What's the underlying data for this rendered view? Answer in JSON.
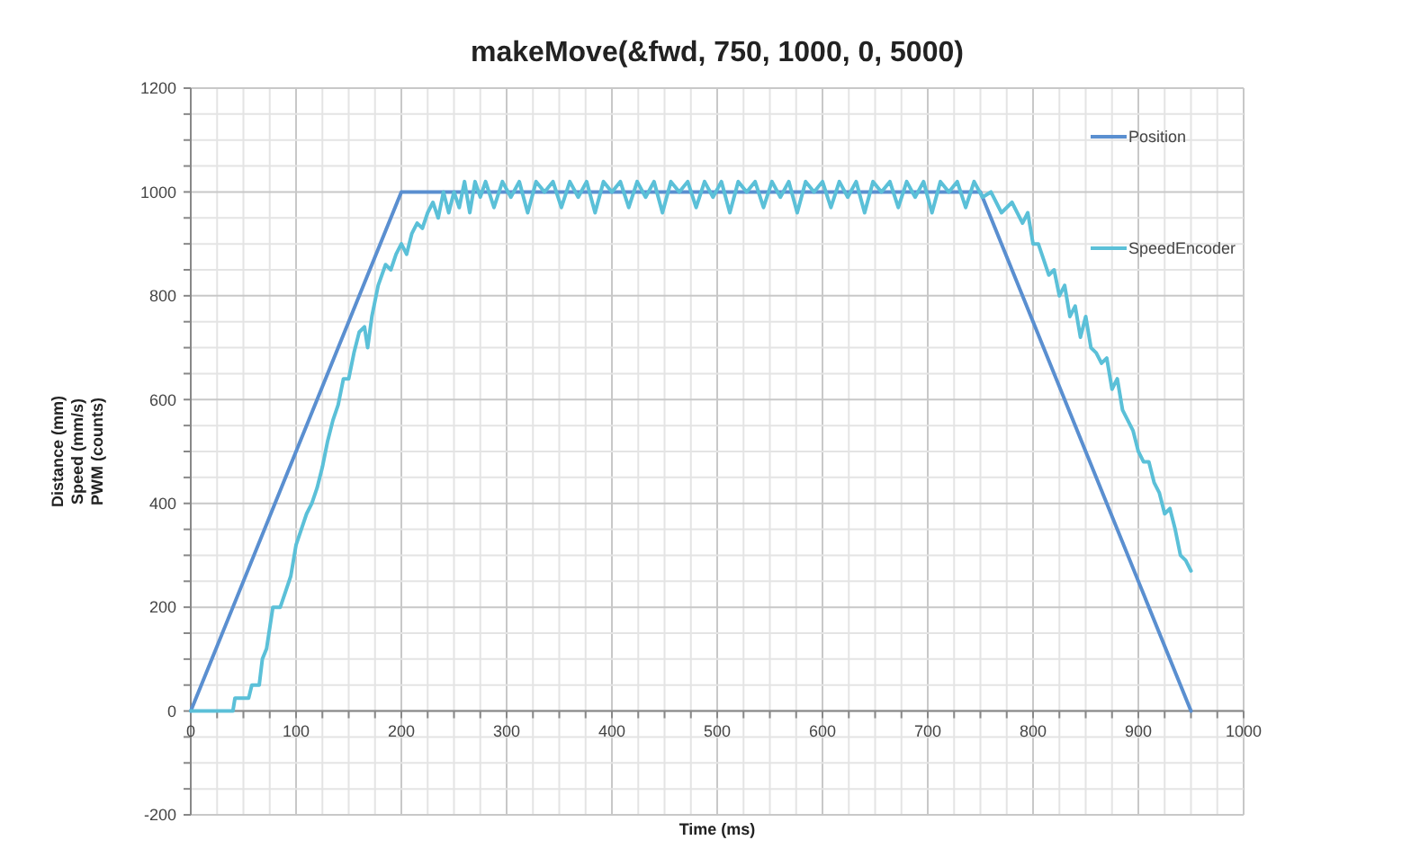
{
  "chart_data": {
    "type": "line",
    "title": "makeMove(&fwd, 750, 1000, 0, 5000)",
    "xlabel": "Time (ms)",
    "ylabel": "Distance (mm)\nSpeed (mm/s)\nPWM (counts)",
    "xlim": [
      0,
      1000
    ],
    "ylim": [
      -200,
      1200
    ],
    "xticks": [
      0,
      {
        "value": 25,
        "label": null
      },
      {
        "value": 50,
        "label": null
      },
      {
        "value": 75,
        "label": null
      },
      100,
      {
        "value": 125,
        "label": null
      },
      {
        "value": 150,
        "label": null
      },
      {
        "value": 175,
        "label": null
      },
      200,
      {
        "value": 225,
        "label": null
      },
      {
        "value": 250,
        "label": null
      },
      {
        "value": 275,
        "label": null
      },
      300,
      {
        "value": 325,
        "label": null
      },
      {
        "value": 350,
        "label": null
      },
      {
        "value": 375,
        "label": null
      },
      400,
      {
        "value": 425,
        "label": null
      },
      {
        "value": 450,
        "label": null
      },
      {
        "value": 475,
        "label": null
      },
      500,
      {
        "value": 525,
        "label": null
      },
      {
        "value": 550,
        "label": null
      },
      {
        "value": 575,
        "label": null
      },
      600,
      {
        "value": 625,
        "label": null
      },
      {
        "value": 650,
        "label": null
      },
      {
        "value": 675,
        "label": null
      },
      700,
      {
        "value": 725,
        "label": null
      },
      {
        "value": 750,
        "label": null
      },
      {
        "value": 775,
        "label": null
      },
      800,
      {
        "value": 825,
        "label": null
      },
      {
        "value": 850,
        "label": null
      },
      {
        "value": 875,
        "label": null
      },
      900,
      {
        "value": 925,
        "label": null
      },
      {
        "value": 950,
        "label": null
      },
      {
        "value": 975,
        "label": null
      },
      1000
    ],
    "yticks": [
      -200,
      {
        "value": -150,
        "label": null
      },
      {
        "value": -100,
        "label": null
      },
      {
        "value": -50,
        "label": null
      },
      0,
      {
        "value": 50,
        "label": null
      },
      {
        "value": 100,
        "label": null
      },
      {
        "value": 150,
        "label": null
      },
      200,
      {
        "value": 250,
        "label": null
      },
      {
        "value": 300,
        "label": null
      },
      {
        "value": 350,
        "label": null
      },
      400,
      {
        "value": 450,
        "label": null
      },
      {
        "value": 500,
        "label": null
      },
      {
        "value": 550,
        "label": null
      },
      600,
      {
        "value": 650,
        "label": null
      },
      {
        "value": 700,
        "label": null
      },
      {
        "value": 750,
        "label": null
      },
      800,
      {
        "value": 850,
        "label": null
      },
      {
        "value": 900,
        "label": null
      },
      {
        "value": 950,
        "label": null
      },
      1000,
      {
        "value": 1050,
        "label": null
      },
      {
        "value": 1100,
        "label": null
      },
      {
        "value": 1150,
        "label": null
      },
      1200
    ],
    "grid": true,
    "legend": "right",
    "marker": "none",
    "line_style": "solid",
    "series": [
      {
        "name": "Position",
        "color": "#5a8fd0",
        "x": [
          0,
          200,
          750,
          950
        ],
        "values": [
          0,
          1000,
          1000,
          0
        ]
      },
      {
        "name": "SpeedEncoder",
        "color": "#5bc0d8",
        "x": [
          0,
          40,
          42,
          55,
          58,
          65,
          68,
          72,
          78,
          85,
          90,
          95,
          100,
          105,
          110,
          115,
          120,
          125,
          130,
          135,
          140,
          145,
          150,
          155,
          160,
          165,
          168,
          172,
          178,
          185,
          190,
          195,
          200,
          205,
          210,
          215,
          220,
          225,
          230,
          235,
          240,
          245,
          250,
          255,
          260,
          265,
          270,
          275,
          280,
          288,
          296,
          304,
          312,
          320,
          328,
          336,
          344,
          352,
          360,
          368,
          376,
          384,
          392,
          400,
          408,
          416,
          424,
          432,
          440,
          448,
          456,
          464,
          472,
          480,
          488,
          496,
          504,
          512,
          520,
          528,
          536,
          544,
          552,
          560,
          568,
          576,
          584,
          592,
          600,
          608,
          616,
          624,
          632,
          640,
          648,
          656,
          664,
          672,
          680,
          688,
          696,
          704,
          712,
          720,
          728,
          736,
          744,
          752,
          760,
          770,
          780,
          790,
          795,
          800,
          805,
          810,
          815,
          820,
          825,
          830,
          835,
          840,
          845,
          850,
          855,
          860,
          865,
          870,
          875,
          880,
          885,
          890,
          895,
          900,
          905,
          910,
          915,
          920,
          925,
          930,
          935,
          940,
          945,
          950
        ],
        "values": [
          0,
          0,
          25,
          25,
          50,
          50,
          100,
          120,
          200,
          200,
          230,
          260,
          320,
          350,
          380,
          400,
          430,
          470,
          520,
          560,
          590,
          640,
          640,
          690,
          730,
          740,
          700,
          760,
          820,
          860,
          850,
          880,
          900,
          880,
          920,
          940,
          930,
          960,
          980,
          950,
          1000,
          960,
          1000,
          970,
          1020,
          960,
          1020,
          990,
          1020,
          970,
          1020,
          990,
          1020,
          960,
          1020,
          1000,
          1020,
          970,
          1020,
          990,
          1020,
          960,
          1020,
          1000,
          1020,
          970,
          1020,
          990,
          1020,
          960,
          1020,
          1000,
          1020,
          970,
          1020,
          990,
          1020,
          960,
          1020,
          1000,
          1020,
          970,
          1020,
          990,
          1020,
          960,
          1020,
          1000,
          1020,
          970,
          1020,
          990,
          1020,
          960,
          1020,
          1000,
          1020,
          970,
          1020,
          990,
          1020,
          960,
          1020,
          1000,
          1020,
          970,
          1020,
          990,
          1000,
          960,
          980,
          940,
          960,
          900,
          900,
          870,
          840,
          850,
          800,
          820,
          760,
          780,
          720,
          760,
          700,
          690,
          670,
          680,
          620,
          640,
          580,
          560,
          540,
          500,
          480,
          480,
          440,
          420,
          380,
          390,
          350,
          300,
          290,
          270
        ]
      }
    ]
  }
}
